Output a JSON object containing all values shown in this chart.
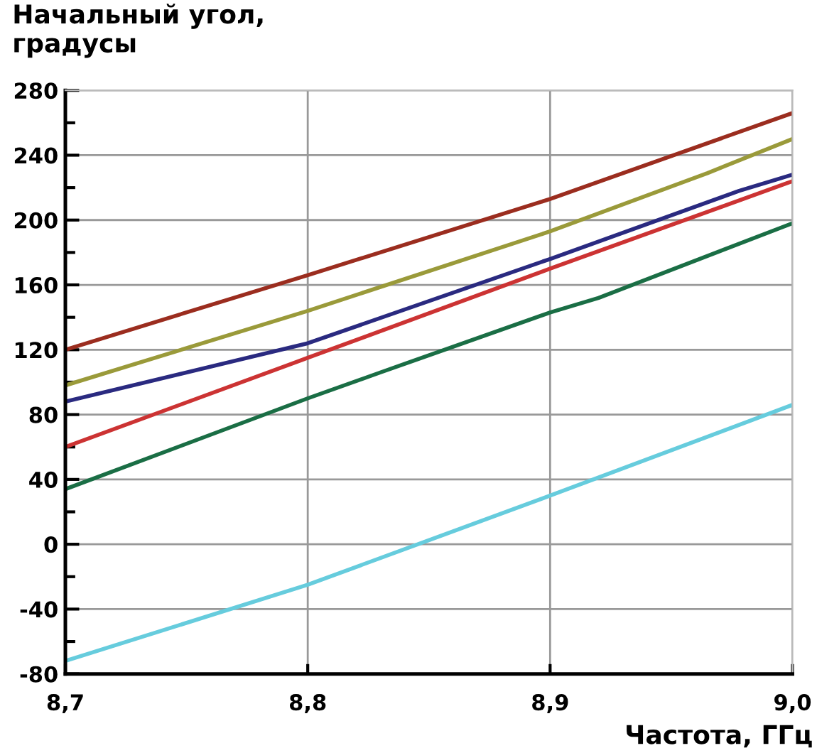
{
  "chart_data": {
    "type": "line",
    "ylabel": "Начальный угол,\nградусы",
    "xlabel": "Частота, ГГц",
    "xlim": [
      8.7,
      9.0
    ],
    "ylim": [
      -80,
      280
    ],
    "xticks": [
      {
        "value": 8.7,
        "label": "8,7"
      },
      {
        "value": 8.8,
        "label": "8,8"
      },
      {
        "value": 8.9,
        "label": "8,9"
      },
      {
        "value": 9.0,
        "label": "9,0"
      }
    ],
    "yticks": [
      -80,
      {
        "value": -60,
        "label": null
      },
      -40,
      {
        "value": -20,
        "label": null
      },
      0,
      {
        "value": 20,
        "label": null
      },
      40,
      {
        "value": 60,
        "label": null
      },
      80,
      {
        "value": 100,
        "label": null
      },
      120,
      {
        "value": 140,
        "label": null
      },
      160,
      {
        "value": 180,
        "label": null
      },
      200,
      {
        "value": 220,
        "label": null
      },
      240,
      {
        "value": 260,
        "label": null
      },
      280
    ],
    "grid": true,
    "legend": false,
    "series": [
      {
        "color": "#9b2d1f",
        "x": [
          8.7,
          8.8,
          8.9,
          9.0
        ],
        "values": [
          120,
          166,
          213,
          266
        ]
      },
      {
        "color": "#9a9a3a",
        "x": [
          8.7,
          8.8,
          8.9,
          8.965,
          9.0
        ],
        "values": [
          98,
          144,
          193,
          229,
          250
        ]
      },
      {
        "color": "#2a2a80",
        "x": [
          8.7,
          8.8,
          8.9,
          8.978,
          9.0
        ],
        "values": [
          88,
          124,
          176,
          218,
          228
        ]
      },
      {
        "color": "#cc3333",
        "x": [
          8.7,
          8.8,
          8.9,
          9.0
        ],
        "values": [
          60,
          115,
          170,
          224
        ]
      },
      {
        "color": "#1a6e45",
        "x": [
          8.7,
          8.8,
          8.83,
          8.9,
          8.92,
          9.0
        ],
        "values": [
          34,
          90,
          106,
          143,
          152,
          198
        ]
      },
      {
        "color": "#66ccdd",
        "x": [
          8.7,
          8.8,
          8.82,
          8.9,
          9.0
        ],
        "values": [
          -72,
          -25,
          -14,
          30,
          86
        ]
      }
    ]
  }
}
